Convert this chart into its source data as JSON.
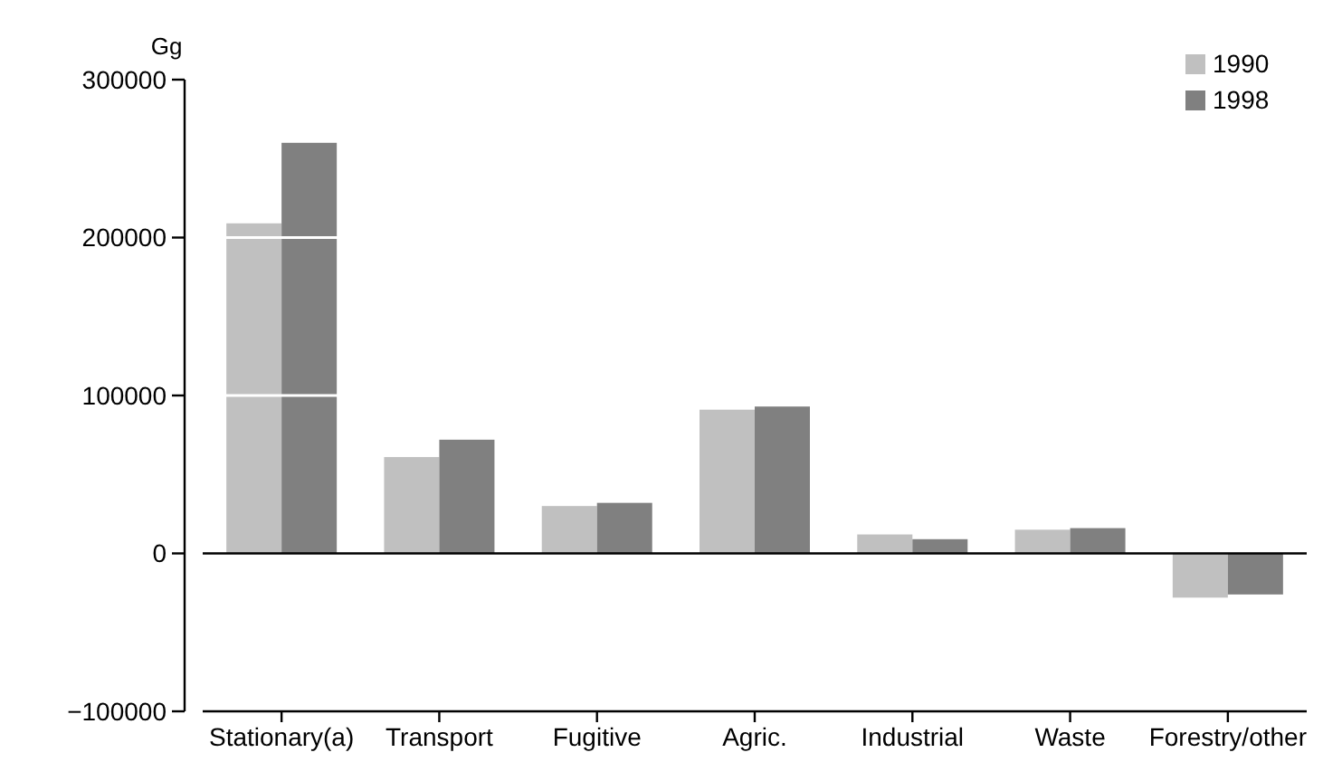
{
  "chart_data": {
    "type": "bar",
    "ylabel": "Gg",
    "categories": [
      "Stationary(a)",
      "Transport",
      "Fugitive",
      "Agric.",
      "Industrial",
      "Waste",
      "Forestry/other"
    ],
    "series": [
      {
        "name": "1990",
        "color": "#c0c0c0",
        "values": [
          209000,
          61000,
          30000,
          91000,
          12000,
          15000,
          -28000
        ]
      },
      {
        "name": "1998",
        "color": "#808080",
        "values": [
          260000,
          72000,
          32000,
          93000,
          9000,
          16000,
          -26000
        ]
      }
    ],
    "ylim": [
      -100000,
      300000
    ],
    "yticks": [
      {
        "value": -100000,
        "label": "−100000"
      },
      0,
      100000,
      200000,
      300000
    ],
    "grid": "y",
    "legend": "top right"
  }
}
